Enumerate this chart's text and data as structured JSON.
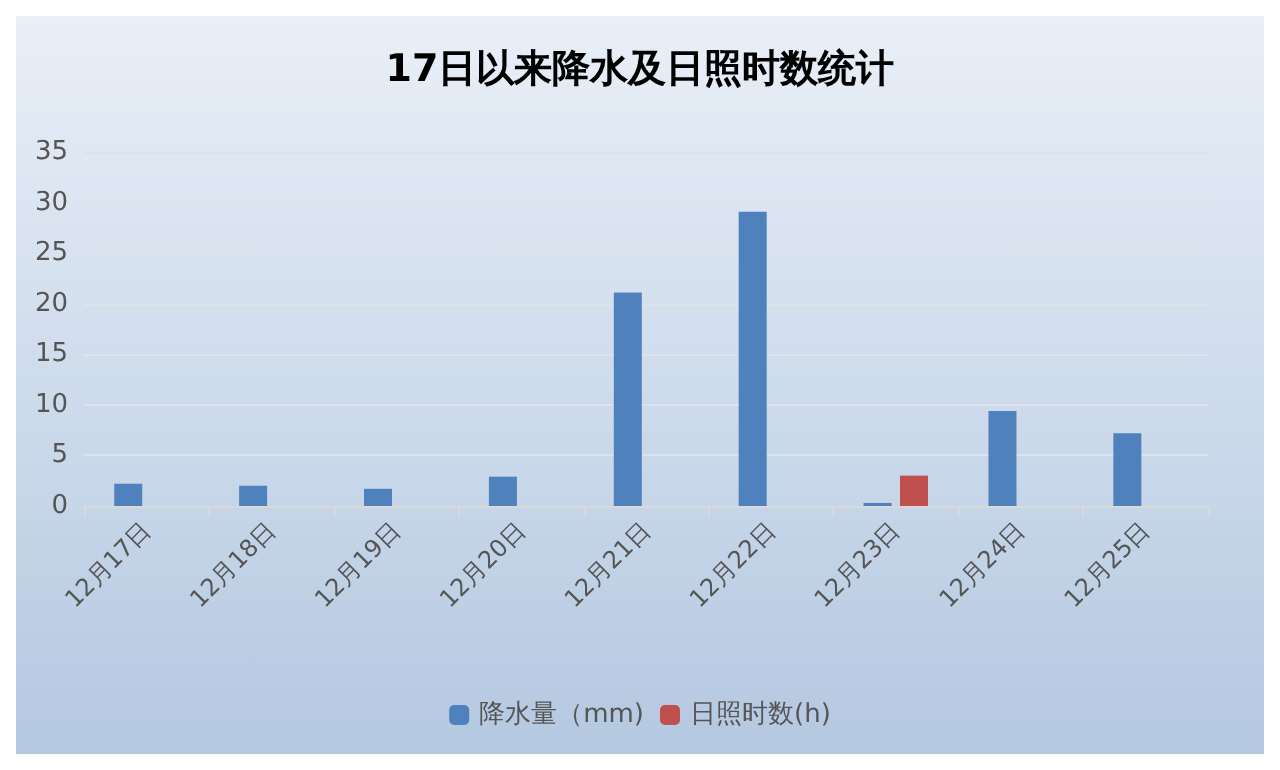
{
  "chart_data": {
    "type": "bar",
    "title": "17日以来降水及日照时数统计",
    "categories": [
      "12月17日",
      "12月18日",
      "12月19日",
      "12月20日",
      "12月21日",
      "12月22日",
      "12月23日",
      "12月24日",
      "12月25日"
    ],
    "series": [
      {
        "name": "降水量（mm)",
        "color": "#4f81bd",
        "values": [
          2.2,
          2.0,
          1.7,
          2.9,
          21.1,
          29.1,
          0.3,
          9.4,
          7.2
        ]
      },
      {
        "name": "日照时数(h)",
        "color": "#c0504d",
        "values": [
          null,
          null,
          null,
          null,
          null,
          null,
          3.0,
          null,
          null
        ]
      }
    ],
    "ylim": [
      0,
      35
    ],
    "yticks": [
      0,
      5,
      10,
      15,
      20,
      25,
      30,
      35
    ],
    "grid": "y",
    "legend": "bottom"
  }
}
